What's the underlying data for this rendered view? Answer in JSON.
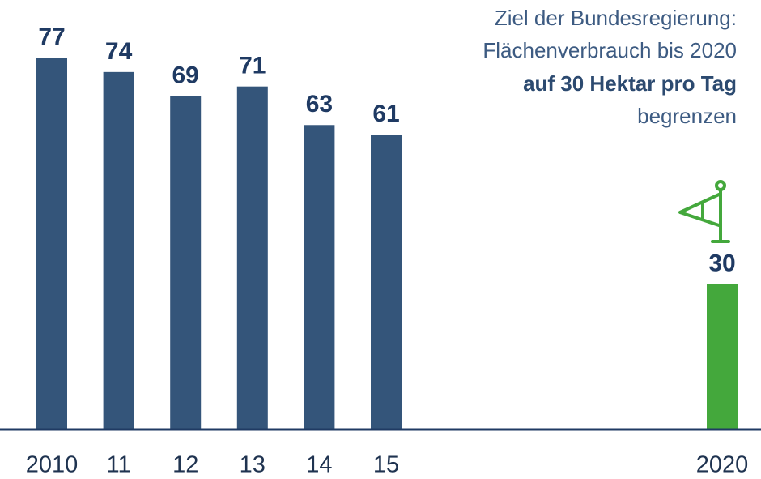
{
  "chart_data": {
    "type": "bar",
    "categories": [
      "2010",
      "11",
      "12",
      "13",
      "14",
      "15",
      "2020"
    ],
    "values": [
      77,
      74,
      69,
      71,
      63,
      61,
      30
    ],
    "colors": [
      "#34557a",
      "#34557a",
      "#34557a",
      "#34557a",
      "#34557a",
      "#34557a",
      "#44a83c"
    ],
    "annotation": [
      "Ziel der Bundesregierung:",
      "Flächenverbrauch bis 2020",
      "auf 30 Hektar pro Tag",
      "begrenzen"
    ]
  }
}
